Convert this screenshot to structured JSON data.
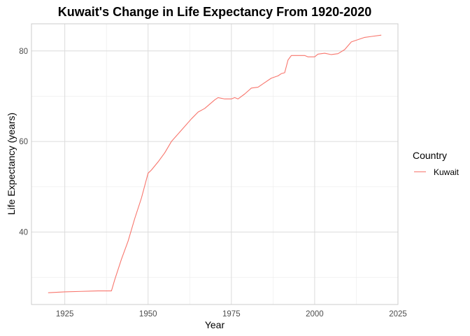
{
  "chart_data": {
    "type": "line",
    "title": "Kuwait's Change in Life Expectancy From 1920-2020",
    "xlabel": "Year",
    "ylabel": "Life Expectancy (years)",
    "xlim": [
      1915,
      2025
    ],
    "ylim": [
      24,
      86
    ],
    "x_ticks": [
      1925,
      1950,
      1975,
      2000,
      2025
    ],
    "x_tick_labels": [
      "1925",
      "1950",
      "1975",
      "2000",
      "2025"
    ],
    "y_ticks": [
      40,
      60,
      80
    ],
    "y_tick_labels": [
      "40",
      "60",
      "80"
    ],
    "grid": true,
    "legend": {
      "title": "Country",
      "position": "right"
    },
    "series": [
      {
        "name": "Kuwait",
        "color": "#F8766D",
        "points": [
          [
            1920,
            26.6
          ],
          [
            1925,
            26.8
          ],
          [
            1930,
            26.9
          ],
          [
            1935,
            27.0
          ],
          [
            1939,
            27.0
          ],
          [
            1940,
            29.5
          ],
          [
            1942,
            34.0
          ],
          [
            1944,
            38.0
          ],
          [
            1946,
            43.0
          ],
          [
            1948,
            47.5
          ],
          [
            1950,
            53.0
          ],
          [
            1951,
            53.7
          ],
          [
            1953,
            55.5
          ],
          [
            1955,
            57.5
          ],
          [
            1957,
            60.0
          ],
          [
            1960,
            62.5
          ],
          [
            1963,
            65.0
          ],
          [
            1965,
            66.5
          ],
          [
            1967,
            67.3
          ],
          [
            1970,
            69.2
          ],
          [
            1971,
            69.7
          ],
          [
            1973,
            69.4
          ],
          [
            1975,
            69.4
          ],
          [
            1976,
            69.7
          ],
          [
            1977,
            69.4
          ],
          [
            1979,
            70.5
          ],
          [
            1981,
            71.8
          ],
          [
            1983,
            72.0
          ],
          [
            1985,
            73.0
          ],
          [
            1987,
            74.0
          ],
          [
            1989,
            74.5
          ],
          [
            1990,
            75.0
          ],
          [
            1991,
            75.2
          ],
          [
            1992,
            78.0
          ],
          [
            1993,
            79.0
          ],
          [
            1995,
            79.0
          ],
          [
            1997,
            79.0
          ],
          [
            1998,
            78.7
          ],
          [
            2000,
            78.7
          ],
          [
            2001,
            79.3
          ],
          [
            2003,
            79.5
          ],
          [
            2005,
            79.2
          ],
          [
            2007,
            79.4
          ],
          [
            2009,
            80.3
          ],
          [
            2011,
            82.0
          ],
          [
            2013,
            82.5
          ],
          [
            2015,
            83.0
          ],
          [
            2017,
            83.2
          ],
          [
            2020,
            83.5
          ]
        ]
      }
    ]
  }
}
